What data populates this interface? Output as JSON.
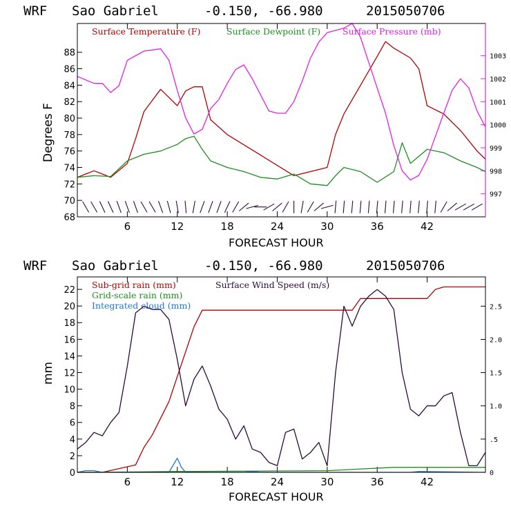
{
  "colors": {
    "temperature": "#b00000",
    "dewpoint": "#1e8c1e",
    "pressure": "#e020e0",
    "subgrid_rain": "#b00000",
    "gridscale_rain": "#1e8c1e",
    "cloud": "#1e78d2",
    "wind": "#2a0a3c",
    "axis": "#000000"
  },
  "chart_data": [
    {
      "type": "line",
      "header": {
        "model": "WRF",
        "station": "Sao Gabriel",
        "coords": "-0.150, -66.980",
        "run": "2015050706"
      },
      "legend": [
        "Surface Temperature (F)",
        "Surface Dewpoint (F)",
        "Surface Pressure (mb)"
      ],
      "xlabel": "FORECAST HOUR",
      "ylabel": "Degrees F",
      "xlim": [
        0,
        49
      ],
      "xticks": [
        6,
        12,
        18,
        24,
        30,
        36,
        42
      ],
      "ylim": [
        68,
        91.5
      ],
      "yticks": [
        68,
        70,
        72,
        74,
        76,
        78,
        80,
        82,
        84,
        86,
        88
      ],
      "y2lim": [
        996,
        1004.4
      ],
      "y2ticks": [
        997,
        998,
        999,
        1000,
        1001,
        1002,
        1003
      ],
      "series": [
        {
          "name": "Surface Temperature (F)",
          "x": [
            0,
            2,
            3,
            4,
            6,
            7,
            8,
            10,
            11,
            12,
            13,
            14,
            15,
            16,
            18,
            22,
            26,
            30,
            31,
            32,
            34,
            36,
            37,
            38,
            40,
            41,
            42,
            44,
            46,
            48,
            49
          ],
          "values": [
            72.8,
            73.6,
            73.2,
            72.8,
            74.5,
            77.5,
            80.8,
            83.5,
            82.5,
            81.5,
            83.3,
            83.8,
            83.8,
            79.8,
            78.0,
            75.5,
            73.0,
            74.0,
            78.0,
            80.5,
            84.0,
            87.5,
            89.3,
            88.5,
            87.3,
            86.0,
            81.5,
            80.5,
            78.5,
            76.0,
            75.0
          ]
        },
        {
          "name": "Surface Dewpoint (F)",
          "x": [
            0,
            2,
            4,
            6,
            8,
            10,
            12,
            13,
            14,
            15,
            16,
            18,
            20,
            22,
            24,
            26,
            28,
            30,
            31,
            32,
            34,
            36,
            38,
            39,
            40,
            42,
            44,
            46,
            48,
            49
          ],
          "values": [
            72.8,
            73.0,
            72.9,
            74.8,
            75.6,
            76.0,
            76.8,
            77.5,
            77.8,
            76.2,
            74.8,
            74.0,
            73.5,
            72.8,
            72.6,
            73.2,
            72.0,
            71.8,
            73.0,
            74.0,
            73.5,
            72.2,
            73.5,
            77.0,
            74.5,
            76.2,
            75.8,
            74.8,
            74.0,
            73.5
          ]
        },
        {
          "name": "Surface Pressure (mb)",
          "x": [
            0,
            2,
            3,
            4,
            5,
            6,
            8,
            10,
            11,
            12,
            13,
            14,
            15,
            16,
            17,
            18,
            19,
            20,
            21,
            22,
            23,
            24,
            25,
            26,
            27,
            28,
            29,
            30,
            31,
            32,
            33,
            34,
            35,
            36,
            37,
            38,
            39,
            40,
            41,
            42,
            43,
            44,
            45,
            46,
            47,
            48,
            49
          ],
          "values": [
            1002.1,
            1001.8,
            1001.8,
            1001.4,
            1001.7,
            1002.8,
            1003.2,
            1003.3,
            1002.8,
            1001.5,
            1000.3,
            999.6,
            999.8,
            1000.7,
            1001.1,
            1001.8,
            1002.4,
            1002.6,
            1002.0,
            1001.3,
            1000.6,
            1000.5,
            1000.5,
            1001.0,
            1001.9,
            1002.9,
            1003.6,
            1004.0,
            1004.1,
            1004.2,
            1004.4,
            1003.8,
            1002.7,
            1001.6,
            1000.5,
            999.1,
            998.0,
            997.6,
            997.8,
            998.5,
            999.5,
            1000.5,
            1001.5,
            1002.0,
            1001.6,
            1000.6,
            999.9
          ]
        }
      ],
      "wind_barbs": [
        {
          "x": 1,
          "deg": 60
        },
        {
          "x": 2,
          "deg": 60
        },
        {
          "x": 3,
          "deg": 65
        },
        {
          "x": 4,
          "deg": 65
        },
        {
          "x": 5,
          "deg": 70
        },
        {
          "x": 6,
          "deg": 70
        },
        {
          "x": 7,
          "deg": 70
        },
        {
          "x": 8,
          "deg": 60
        },
        {
          "x": 9,
          "deg": 60
        },
        {
          "x": 10,
          "deg": 70
        },
        {
          "x": 11,
          "deg": 75
        },
        {
          "x": 12,
          "deg": 80
        },
        {
          "x": 13,
          "deg": 85
        },
        {
          "x": 14,
          "deg": 100
        },
        {
          "x": 15,
          "deg": 110
        },
        {
          "x": 16,
          "deg": 110
        },
        {
          "x": 17,
          "deg": 110
        },
        {
          "x": 18,
          "deg": 115
        },
        {
          "x": 19,
          "deg": 120
        },
        {
          "x": 20,
          "deg": 140
        },
        {
          "x": 21,
          "deg": 165
        },
        {
          "x": 22,
          "deg": 180
        },
        {
          "x": 23,
          "deg": 150
        },
        {
          "x": 24,
          "deg": 140
        },
        {
          "x": 25,
          "deg": 120
        },
        {
          "x": 26,
          "deg": 90
        },
        {
          "x": 27,
          "deg": 100
        },
        {
          "x": 28,
          "deg": 120
        },
        {
          "x": 29,
          "deg": 140
        },
        {
          "x": 30,
          "deg": 165
        },
        {
          "x": 31,
          "deg": 95
        },
        {
          "x": 32,
          "deg": 95
        },
        {
          "x": 33,
          "deg": 95
        },
        {
          "x": 34,
          "deg": 95
        },
        {
          "x": 35,
          "deg": 95
        },
        {
          "x": 36,
          "deg": 95
        },
        {
          "x": 37,
          "deg": 95
        },
        {
          "x": 38,
          "deg": 95
        },
        {
          "x": 39,
          "deg": 95
        },
        {
          "x": 40,
          "deg": 95
        },
        {
          "x": 41,
          "deg": 95
        },
        {
          "x": 42,
          "deg": 95
        },
        {
          "x": 43,
          "deg": 95
        },
        {
          "x": 44,
          "deg": 120
        },
        {
          "x": 45,
          "deg": 140
        },
        {
          "x": 46,
          "deg": 150
        },
        {
          "x": 47,
          "deg": 150
        },
        {
          "x": 48,
          "deg": 150
        }
      ]
    },
    {
      "type": "line",
      "header": {
        "model": "WRF",
        "station": "Sao Gabriel",
        "coords": "-0.150, -66.980",
        "run": "2015050706"
      },
      "legend": [
        "Sub-grid rain (mm)",
        "Surface Wind Speed (m/s)",
        "Grid-scale rain (mm)",
        "Integrated cloud (mm)"
      ],
      "xlabel": "FORECAST HOUR",
      "ylabel": "mm",
      "xlim": [
        0,
        49
      ],
      "xticks": [
        6,
        12,
        18,
        24,
        30,
        36,
        42
      ],
      "ylim": [
        0,
        23.5
      ],
      "yticks": [
        0,
        2,
        4,
        6,
        8,
        10,
        12,
        14,
        16,
        18,
        20,
        22
      ],
      "y2lim": [
        0,
        2.94
      ],
      "y2ticks": [
        0,
        0.5,
        1.0,
        1.5,
        2.0,
        2.5
      ],
      "y2ticklabels": [
        "0",
        ".5",
        "1.0",
        "1.5",
        "2.0",
        "2.5"
      ],
      "series": [
        {
          "name": "Sub-grid rain (mm)",
          "x": [
            0,
            3,
            7,
            8,
            9,
            10,
            11,
            12,
            13,
            14,
            15,
            16,
            17,
            18,
            20,
            25,
            30,
            33,
            34,
            38,
            42,
            43,
            44,
            49
          ],
          "values": [
            0,
            0,
            0.9,
            3.0,
            4.5,
            6.5,
            8.5,
            11.5,
            14.5,
            17.5,
            19.5,
            19.5,
            19.5,
            19.5,
            19.5,
            19.5,
            19.5,
            19.5,
            20.9,
            20.9,
            20.9,
            22.0,
            22.3,
            22.3
          ]
        },
        {
          "name": "Surface Wind Speed (m/s)",
          "x": [
            0,
            1,
            2,
            3,
            4,
            5,
            6,
            7,
            8,
            9,
            10,
            11,
            12,
            13,
            14,
            15,
            16,
            17,
            18,
            19,
            20,
            21,
            22,
            23,
            24,
            25,
            26,
            27,
            28,
            29,
            30,
            31,
            32,
            33,
            34,
            35,
            36,
            37,
            38,
            39,
            40,
            41,
            42,
            43,
            44,
            45,
            46,
            47,
            48,
            49
          ],
          "values": [
            0.35,
            0.45,
            0.6,
            0.55,
            0.75,
            0.9,
            1.6,
            2.4,
            2.5,
            2.45,
            2.45,
            2.3,
            1.7,
            1.0,
            1.4,
            1.6,
            1.3,
            0.95,
            0.8,
            0.5,
            0.7,
            0.35,
            0.3,
            0.15,
            0.1,
            0.6,
            0.65,
            0.2,
            0.3,
            0.45,
            0.1,
            1.5,
            2.5,
            2.2,
            2.5,
            2.65,
            2.75,
            2.65,
            2.45,
            1.5,
            0.95,
            0.85,
            1.0,
            1.0,
            1.15,
            1.2,
            0.6,
            0.1,
            0.1,
            0.3
          ]
        },
        {
          "name": "Grid-scale rain (mm)",
          "x": [
            0,
            2,
            12,
            30,
            38,
            40,
            49
          ],
          "values": [
            0,
            0,
            0.1,
            0.2,
            0.6,
            0.6,
            0.6
          ]
        },
        {
          "name": "Integrated cloud (mm)",
          "x": [
            0,
            1,
            2,
            3,
            11,
            12,
            12.5,
            13,
            14,
            20,
            21,
            22,
            40,
            41,
            49
          ],
          "values": [
            0,
            0.2,
            0.2,
            0,
            0,
            1.7,
            0.6,
            0,
            0,
            0,
            0.1,
            0,
            0,
            0.1,
            0
          ]
        }
      ]
    }
  ]
}
